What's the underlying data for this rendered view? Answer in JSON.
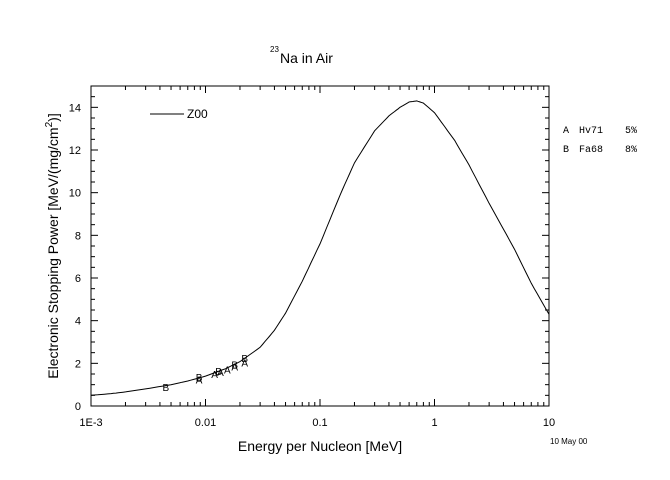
{
  "chart_data": {
    "type": "line",
    "title_sup": "23",
    "title_main": "Na in Air",
    "xlabel": "Energy per Nucleon [MeV]",
    "ylabel_main": "Electronic Stopping Power [MeV/(mg/cm",
    "ylabel_sup": "2",
    "ylabel_end": ")]",
    "xscale": "log",
    "xlim": [
      0.001,
      10
    ],
    "ylim": [
      0,
      15
    ],
    "x_ticks": [
      {
        "value": 0.001,
        "label": "1E-3"
      },
      {
        "value": 0.01,
        "label": "0.01"
      },
      {
        "value": 0.1,
        "label": "0.1"
      },
      {
        "value": 1,
        "label": "1"
      },
      {
        "value": 10,
        "label": "10"
      }
    ],
    "y_ticks": [
      0,
      2,
      4,
      6,
      8,
      10,
      12,
      14
    ],
    "legend_position": "top-left",
    "series": [
      {
        "name": "Z00",
        "x": [
          0.001,
          0.0015,
          0.002,
          0.003,
          0.005,
          0.007,
          0.01,
          0.015,
          0.02,
          0.03,
          0.04,
          0.05,
          0.07,
          0.1,
          0.15,
          0.2,
          0.3,
          0.4,
          0.5,
          0.6,
          0.7,
          0.8,
          1.0,
          1.5,
          2.0,
          3.0,
          5.0,
          7.0,
          10.0
        ],
        "y": [
          0.5,
          0.58,
          0.66,
          0.8,
          1.0,
          1.17,
          1.4,
          1.75,
          2.08,
          2.75,
          3.55,
          4.35,
          5.85,
          7.6,
          9.9,
          11.4,
          12.9,
          13.6,
          14.0,
          14.25,
          14.3,
          14.2,
          13.75,
          12.45,
          11.3,
          9.5,
          7.35,
          5.75,
          4.3
        ]
      }
    ],
    "points": [
      {
        "set": "A",
        "x": 0.0088,
        "y": 1.25
      },
      {
        "set": "A",
        "x": 0.012,
        "y": 1.5
      },
      {
        "set": "A",
        "x": 0.0135,
        "y": 1.6
      },
      {
        "set": "A",
        "x": 0.0155,
        "y": 1.7
      },
      {
        "set": "A",
        "x": 0.018,
        "y": 1.85
      },
      {
        "set": "A",
        "x": 0.022,
        "y": 2.05
      },
      {
        "set": "B",
        "x": 0.0045,
        "y": 0.9
      },
      {
        "set": "B",
        "x": 0.0088,
        "y": 1.35
      },
      {
        "set": "B",
        "x": 0.013,
        "y": 1.65
      },
      {
        "set": "B",
        "x": 0.018,
        "y": 1.95
      },
      {
        "set": "B",
        "x": 0.022,
        "y": 2.25
      }
    ],
    "reference_legend": [
      {
        "code": "A",
        "source": "Hv71",
        "error": "5%"
      },
      {
        "code": "B",
        "source": "Fa68",
        "error": "8%"
      }
    ],
    "date_note": "10 May 00"
  }
}
